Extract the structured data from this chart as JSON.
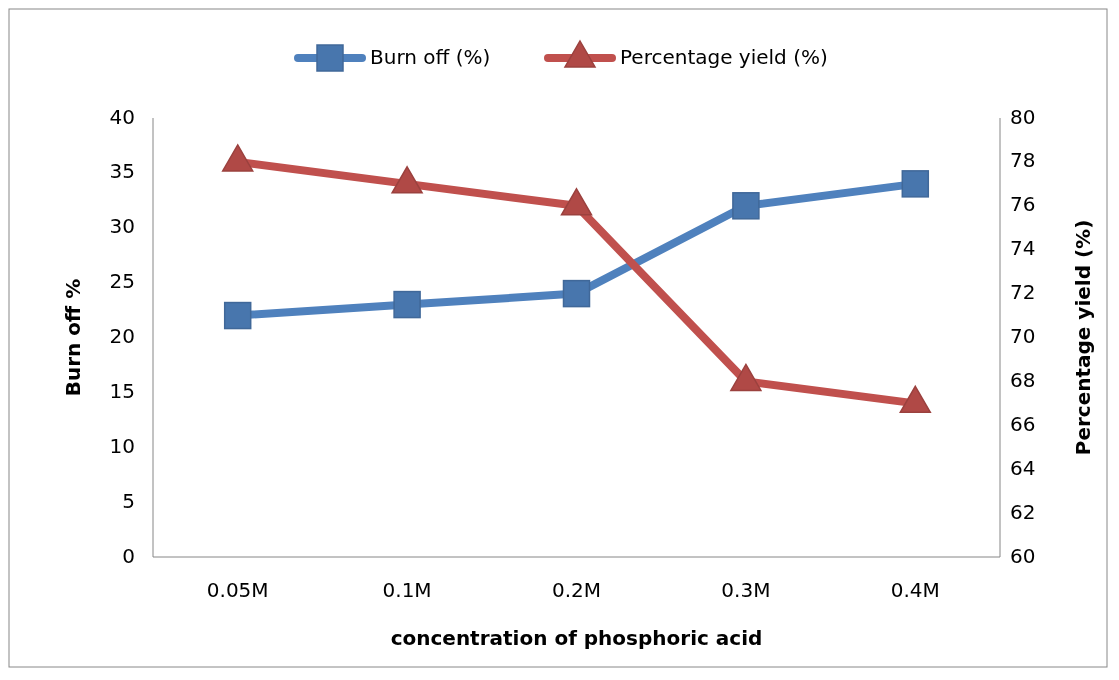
{
  "chart_data": {
    "type": "line",
    "xlabel": "concentration of phosphoric acid",
    "ylabel": "Burn off %",
    "y2label": "Percentage yield (%)",
    "categories": [
      "0.05M",
      "0.1M",
      "0.2M",
      "0.3M",
      "0.4M"
    ],
    "series": [
      {
        "name": "Burn off (%)",
        "color": "#4f81bd",
        "marker": "square",
        "values": [
          22,
          23,
          24,
          32,
          34
        ]
      },
      {
        "name": "Percentage yield (%)",
        "color": "#c0504d",
        "marker": "triangle",
        "axis": "y2",
        "values": [
          78,
          77,
          76,
          68,
          67
        ]
      }
    ],
    "ylim": [
      0,
      40
    ],
    "yticks": [
      0,
      5,
      10,
      15,
      20,
      25,
      30,
      35,
      40
    ],
    "y2lim": [
      60,
      80
    ],
    "y2ticks": [
      60,
      62,
      64,
      66,
      68,
      70,
      72,
      74,
      76,
      78,
      80
    ],
    "legend": "top",
    "grid": false
  }
}
